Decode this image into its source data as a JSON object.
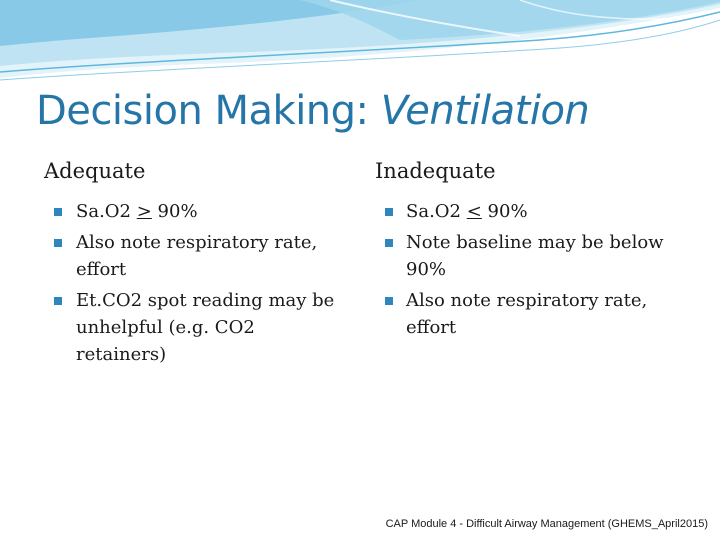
{
  "slide": {
    "title": {
      "main": "Decision Making: ",
      "emphasis": "Ventilation"
    },
    "columns": [
      {
        "heading": "Adequate",
        "bullets": [
          {
            "before": "Sa.O2 ",
            "symbol": ">",
            "after": " 90%"
          },
          {
            "text": "Also note respiratory rate, effort"
          },
          {
            "text": "Et.CO2 spot reading may be unhelpful (e.g. CO2 retainers)"
          }
        ]
      },
      {
        "heading": "Inadequate",
        "bullets": [
          {
            "before": "Sa.O2 ",
            "symbol": "<",
            "after": " 90%"
          },
          {
            "text": "Note baseline may be below 90%"
          },
          {
            "text": "Also note respiratory rate, effort"
          }
        ]
      }
    ],
    "footer": "CAP Module 4 - Difficult Airway Management (GHEMS_April2015)",
    "colors": {
      "title": "#2575A9",
      "bullet_marker": "#2E86BC",
      "wave_light": "#BFE3F2",
      "wave_dark": "#5FB7DD"
    }
  }
}
